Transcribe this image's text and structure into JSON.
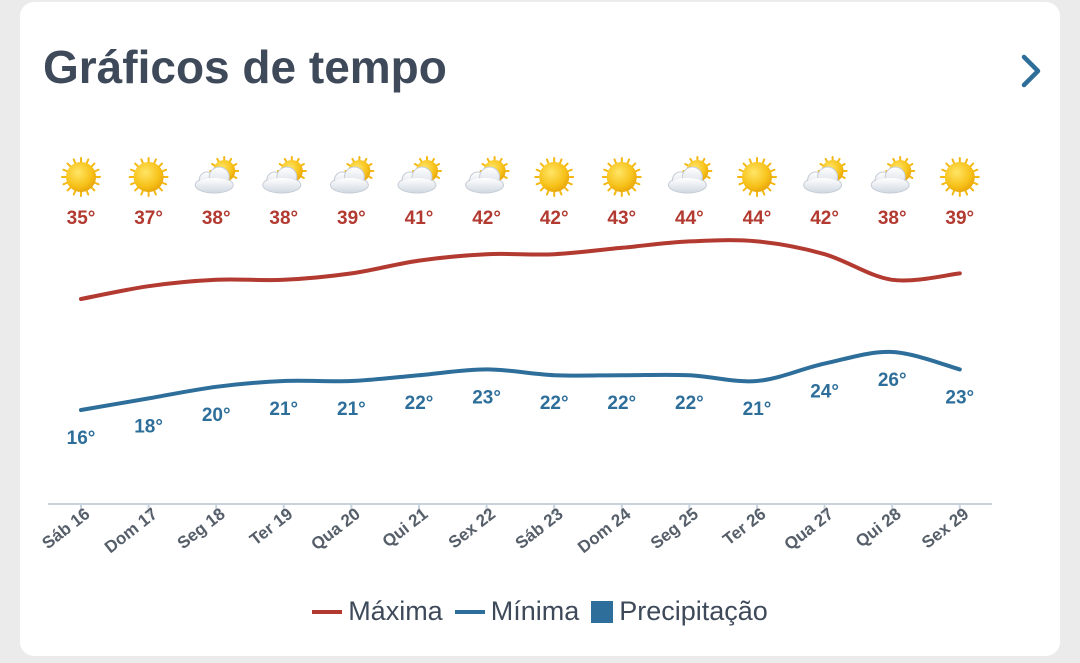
{
  "title": "Gráficos de tempo",
  "icons": {
    "next": "chevron-right-icon"
  },
  "colors": {
    "max": "#b23a30",
    "min": "#2e6e9a",
    "precip": "#2e6e9a",
    "title": "#3e4a5a",
    "axis": "#c8d2dc"
  },
  "chart_data": {
    "type": "line",
    "categories": [
      "Sáb 16",
      "Dom 17",
      "Seg 18",
      "Ter 19",
      "Qua 20",
      "Qui 21",
      "Sex 22",
      "Sáb 23",
      "Dom 24",
      "Seg 25",
      "Ter 26",
      "Qua 27",
      "Qui 28",
      "Sex 29"
    ],
    "weather_icons": [
      "sun",
      "sun",
      "partly-cloudy",
      "partly-cloudy",
      "partly-cloudy",
      "partly-cloudy",
      "partly-cloudy",
      "sun",
      "sun",
      "partly-cloudy",
      "sun",
      "partly-cloudy",
      "partly-cloudy",
      "sun"
    ],
    "series": [
      {
        "name": "Máxima",
        "unit": "°",
        "values": [
          35,
          37,
          38,
          38,
          39,
          41,
          42,
          42,
          43,
          44,
          44,
          42,
          38,
          39
        ]
      },
      {
        "name": "Mínima",
        "unit": "°",
        "values": [
          16,
          18,
          20,
          21,
          21,
          22,
          23,
          22,
          22,
          22,
          21,
          24,
          26,
          23
        ]
      }
    ],
    "legend": [
      "Máxima",
      "Mínima",
      "Precipitação"
    ],
    "legend_position": "bottom",
    "grid": false
  }
}
